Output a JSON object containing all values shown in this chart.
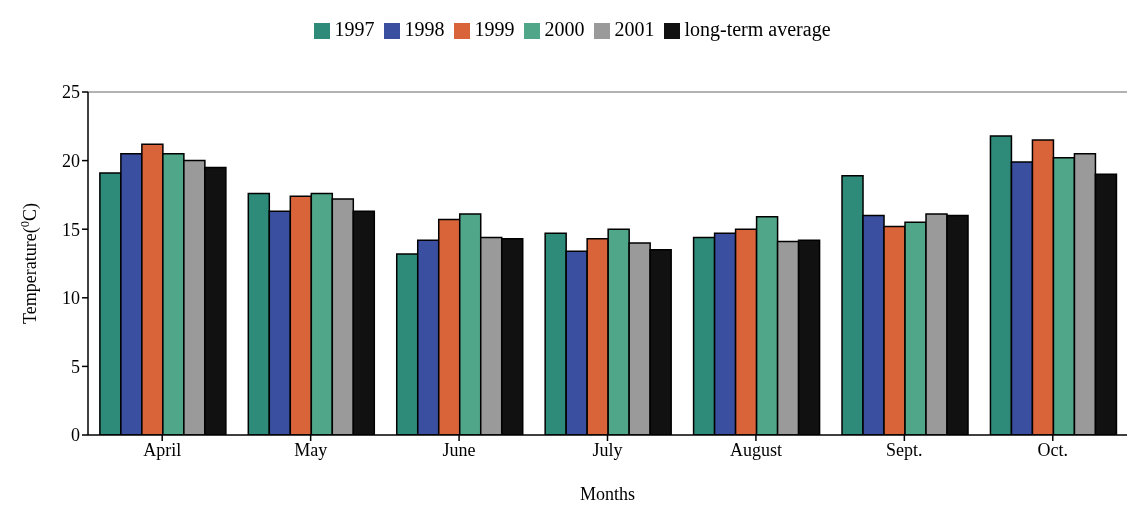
{
  "chart_data": {
    "type": "bar",
    "xlabel": "Months",
    "ylabel": "Temperature($^{0}$C)",
    "categories": [
      "April",
      "May",
      "June",
      "July",
      "August",
      "Sept.",
      "Oct."
    ],
    "series": [
      {
        "name": "1997",
        "color": "#2e8b7a",
        "values": [
          19.1,
          17.6,
          13.2,
          14.7,
          14.4,
          18.9,
          21.8
        ]
      },
      {
        "name": "1998",
        "color": "#3a4fa0",
        "values": [
          20.5,
          16.3,
          14.2,
          13.4,
          14.7,
          16.0,
          19.9
        ]
      },
      {
        "name": "1999",
        "color": "#d9643a",
        "values": [
          21.2,
          17.4,
          15.7,
          14.3,
          15.0,
          15.2,
          21.5
        ]
      },
      {
        "name": "2000",
        "color": "#4fa688",
        "values": [
          20.5,
          17.6,
          16.1,
          15.0,
          15.9,
          15.5,
          20.2
        ]
      },
      {
        "name": "2001",
        "color": "#9a9a9a",
        "values": [
          20.0,
          17.2,
          14.4,
          14.0,
          14.1,
          16.1,
          20.5
        ]
      },
      {
        "name": "long-term average",
        "color": "#111111",
        "values": [
          19.5,
          16.3,
          14.3,
          13.5,
          14.2,
          16.0,
          19.0
        ]
      }
    ],
    "ylim": [
      0,
      25
    ],
    "yticks": [
      0,
      5,
      10,
      15,
      20,
      25
    ],
    "grid": false,
    "legend": "top"
  }
}
